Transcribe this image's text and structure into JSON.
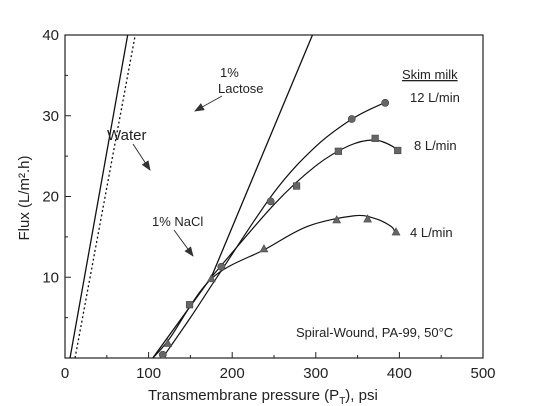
{
  "chart_data": {
    "type": "line",
    "xlabel": "Transmembrane pressure (P",
    "xlabel_sub": "T",
    "xlabel_tail": "), psi",
    "ylabel": "Flux (L/m².h)",
    "xlim": [
      0,
      500
    ],
    "ylim": [
      0,
      40
    ],
    "xticks": [
      0,
      100,
      200,
      300,
      400,
      500
    ],
    "yticks": [
      10,
      20,
      30,
      40
    ],
    "xtick_labels": [
      "0",
      "100",
      "200",
      "300",
      "400",
      "500"
    ],
    "ytick_labels": [
      "10",
      "20",
      "30",
      "40"
    ],
    "grid": false,
    "series": [
      {
        "name": "Water",
        "style": "solid",
        "points": [
          [
            6,
            0
          ],
          [
            75,
            40
          ]
        ]
      },
      {
        "name": "1% Lactose",
        "style": "dotted",
        "points": [
          [
            12,
            0
          ],
          [
            84,
            40
          ]
        ]
      },
      {
        "name": "1% NaCl",
        "style": "solid",
        "points": [
          [
            105,
            0
          ],
          [
            175,
            10
          ],
          [
            296,
            40
          ]
        ]
      },
      {
        "name": "12 L/min",
        "style": "solid",
        "curve": [
          [
            118,
            0.2
          ],
          [
            150,
            5
          ],
          [
            185,
            10.5
          ],
          [
            250,
            20.5
          ],
          [
            300,
            26.2
          ],
          [
            345,
            29.7
          ],
          [
            384,
            31.7
          ]
        ],
        "markers": [
          [
            117,
            0.4
          ],
          [
            187,
            11.3
          ],
          [
            246,
            19.4
          ],
          [
            343,
            29.6
          ],
          [
            383,
            31.6
          ]
        ],
        "marker": "circle"
      },
      {
        "name": "8 L/min",
        "style": "solid",
        "curve": [
          [
            175,
            10
          ],
          [
            250,
            19
          ],
          [
            300,
            23.8
          ],
          [
            340,
            26.3
          ],
          [
            370,
            27
          ],
          [
            392,
            26.2
          ],
          [
            395,
            25.6
          ]
        ],
        "markers": [
          [
            149,
            6.6
          ],
          [
            277,
            21.3
          ],
          [
            327,
            25.6
          ],
          [
            371,
            27.2
          ],
          [
            398,
            25.7
          ]
        ],
        "marker": "square"
      },
      {
        "name": "4 L/min",
        "style": "solid",
        "curve": [
          [
            105,
            0
          ],
          [
            125,
            2.4
          ],
          [
            175,
            9.8
          ],
          [
            240,
            13.5
          ],
          [
            290,
            16.3
          ],
          [
            345,
            17.6
          ],
          [
            370,
            17.3
          ],
          [
            390,
            16.3
          ],
          [
            395,
            15.5
          ]
        ],
        "markers": [
          [
            123,
            1.8
          ],
          [
            175,
            9.8
          ],
          [
            238,
            13.5
          ],
          [
            325,
            17.1
          ],
          [
            362,
            17.2
          ],
          [
            396,
            15.6
          ]
        ],
        "marker": "triangle"
      }
    ],
    "annotations": {
      "water": "Water",
      "lactose_line1": "1%",
      "lactose_line2": "Lactose",
      "nacl": "1% NaCl",
      "skim_milk": "Skim milk",
      "l12": "12 L/min",
      "l8": "8 L/min",
      "l4": "4 L/min",
      "condition": "Spiral-Wound, PA-99, 50°C"
    }
  }
}
